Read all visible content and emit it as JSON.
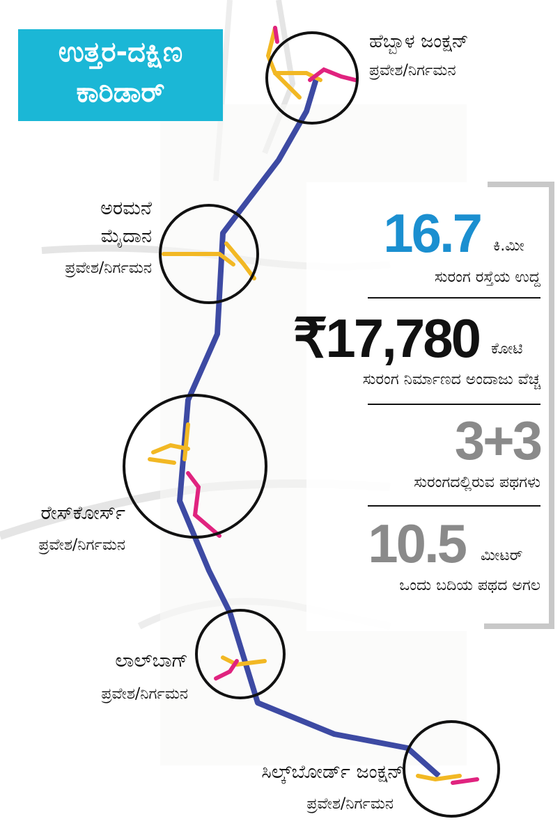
{
  "title": {
    "lines": [
      "ಉತ್ತರ-ದಕ್ಷಿಣ",
      "ಕಾರಿಡಾರ್"
    ]
  },
  "junctions": [
    {
      "name": [
        "ಹೆಬ್ಬಾಳ ಜಂಕ್ಷನ್"
      ],
      "note": "ಪ್ರವೇಶ/ನಿರ್ಗಮನ"
    },
    {
      "name": [
        "ಅರಮನೆ",
        "ಮೈದಾನ"
      ],
      "note": "ಪ್ರವೇಶ/ನಿರ್ಗಮನ"
    },
    {
      "name": [
        "ರೇಸ್‌ಕೋರ್ಸ್"
      ],
      "note": "ಪ್ರವೇಶ/ನಿರ್ಗಮನ"
    },
    {
      "name": [
        "ಲಾಲ್‌ಬಾಗ್"
      ],
      "note": "ಪ್ರವೇಶ/ನಿರ್ಗಮನ"
    },
    {
      "name": [
        "ಸಿಲ್ಕ್‌ಬೋರ್ಡ್ ಜಂಕ್ಷನ್"
      ],
      "note": "ಪ್ರವೇಶ/ನಿರ್ಗಮನ"
    }
  ],
  "stats": [
    {
      "value": "16.7",
      "unit": "ಕಿ.ಮೀ",
      "label": "ಸುರಂಗ ರಸ್ತೆಯ ಉದ್ದ"
    },
    {
      "value": "₹17,780",
      "unit": "ಕೋಟಿ",
      "label": "ಸುರಂಗ ನಿರ್ಮಾಣದ ಅಂದಾಜು ವೆಚ್ಚ"
    },
    {
      "value": "3+3",
      "label": "ಸುರಂಗದಲ್ಲಿರುವ ಪಥಗಳು"
    },
    {
      "value": "10.5",
      "unit": "ಮೀಟರ್",
      "label": "ಒಂದು ಬದಿಯ ಪಥದ ಅಗಲ"
    }
  ]
}
